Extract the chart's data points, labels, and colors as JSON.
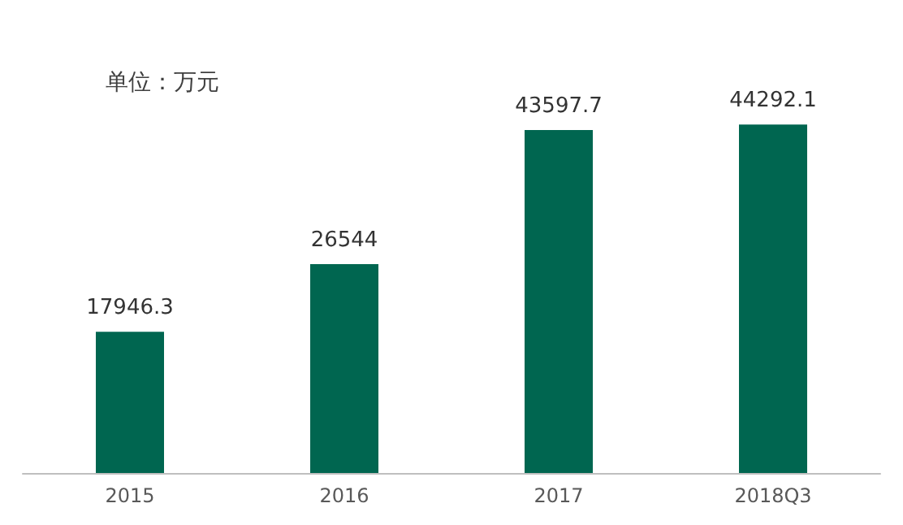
{
  "chart_data": {
    "type": "bar",
    "categories": [
      "2015",
      "2016",
      "2017",
      "2018Q3"
    ],
    "values": [
      17946.3,
      26544,
      43597.7,
      44292.1
    ],
    "color": "#006650",
    "data_labels": true,
    "annotations": [
      "单位：万元"
    ]
  }
}
